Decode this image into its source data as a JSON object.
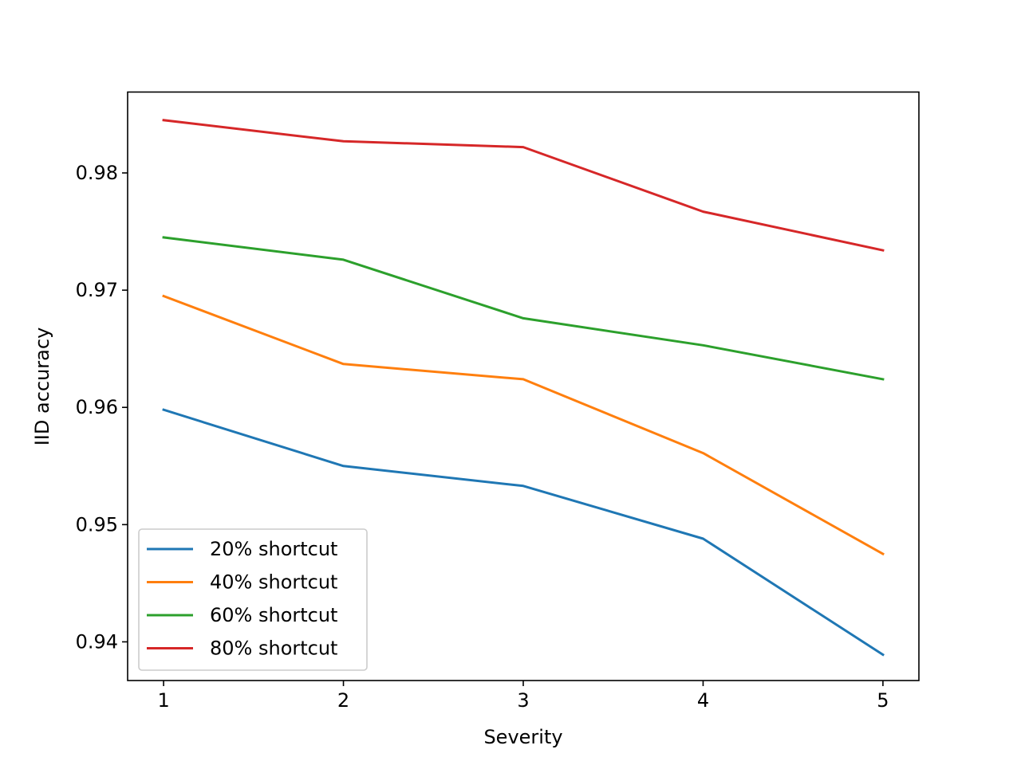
{
  "chart_data": {
    "type": "line",
    "title": "",
    "xlabel": "Severity",
    "ylabel": "IID accuracy",
    "x": [
      1,
      2,
      3,
      4,
      5
    ],
    "xlim": [
      0.8,
      5.2
    ],
    "ylim": [
      0.9367,
      0.9869
    ],
    "x_ticks": [
      "1",
      "2",
      "3",
      "4",
      "5"
    ],
    "y_ticks": [
      "0.94",
      "0.95",
      "0.96",
      "0.97",
      "0.98"
    ],
    "grid": false,
    "legend_position": "lower-left",
    "series": [
      {
        "name": "20% shortcut",
        "color": "#1f77b4",
        "values": [
          0.9598,
          0.955,
          0.9533,
          0.9488,
          0.9389
        ]
      },
      {
        "name": "40% shortcut",
        "color": "#ff7f0e",
        "values": [
          0.9695,
          0.9637,
          0.9624,
          0.9561,
          0.9475
        ]
      },
      {
        "name": "60% shortcut",
        "color": "#2ca02c",
        "values": [
          0.9745,
          0.9726,
          0.9676,
          0.9653,
          0.9624
        ]
      },
      {
        "name": "80% shortcut",
        "color": "#d62728",
        "values": [
          0.9845,
          0.9827,
          0.9822,
          0.9767,
          0.9734
        ]
      }
    ]
  }
}
